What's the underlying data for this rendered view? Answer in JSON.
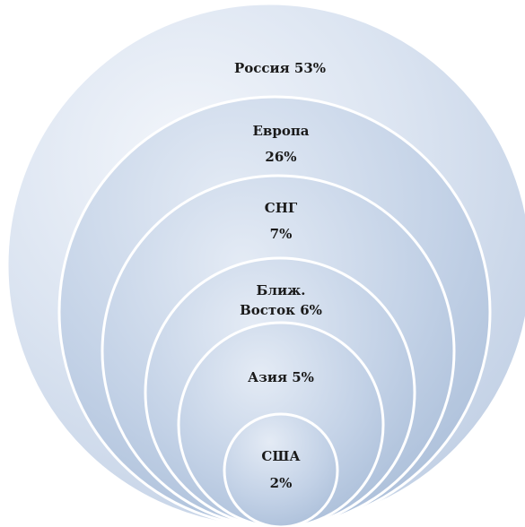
{
  "diagram": {
    "type": "nested-circles",
    "colors": {
      "stroke": "#ffffff",
      "fill_light": "#e2eaf5",
      "fill_mid": "#bdcde3",
      "fill_dark": "#a8bcd7"
    },
    "items": [
      {
        "id": "russia",
        "lines": [
          "Россия  53%"
        ]
      },
      {
        "id": "europe",
        "lines": [
          "Европа",
          "26%"
        ]
      },
      {
        "id": "cis",
        "lines": [
          "СНГ",
          "7%"
        ]
      },
      {
        "id": "mideast",
        "lines": [
          "Ближ.",
          "Восток 6%"
        ]
      },
      {
        "id": "asia",
        "lines": [
          "Азия 5%"
        ]
      },
      {
        "id": "usa",
        "lines": [
          "США",
          "2%"
        ]
      }
    ]
  }
}
